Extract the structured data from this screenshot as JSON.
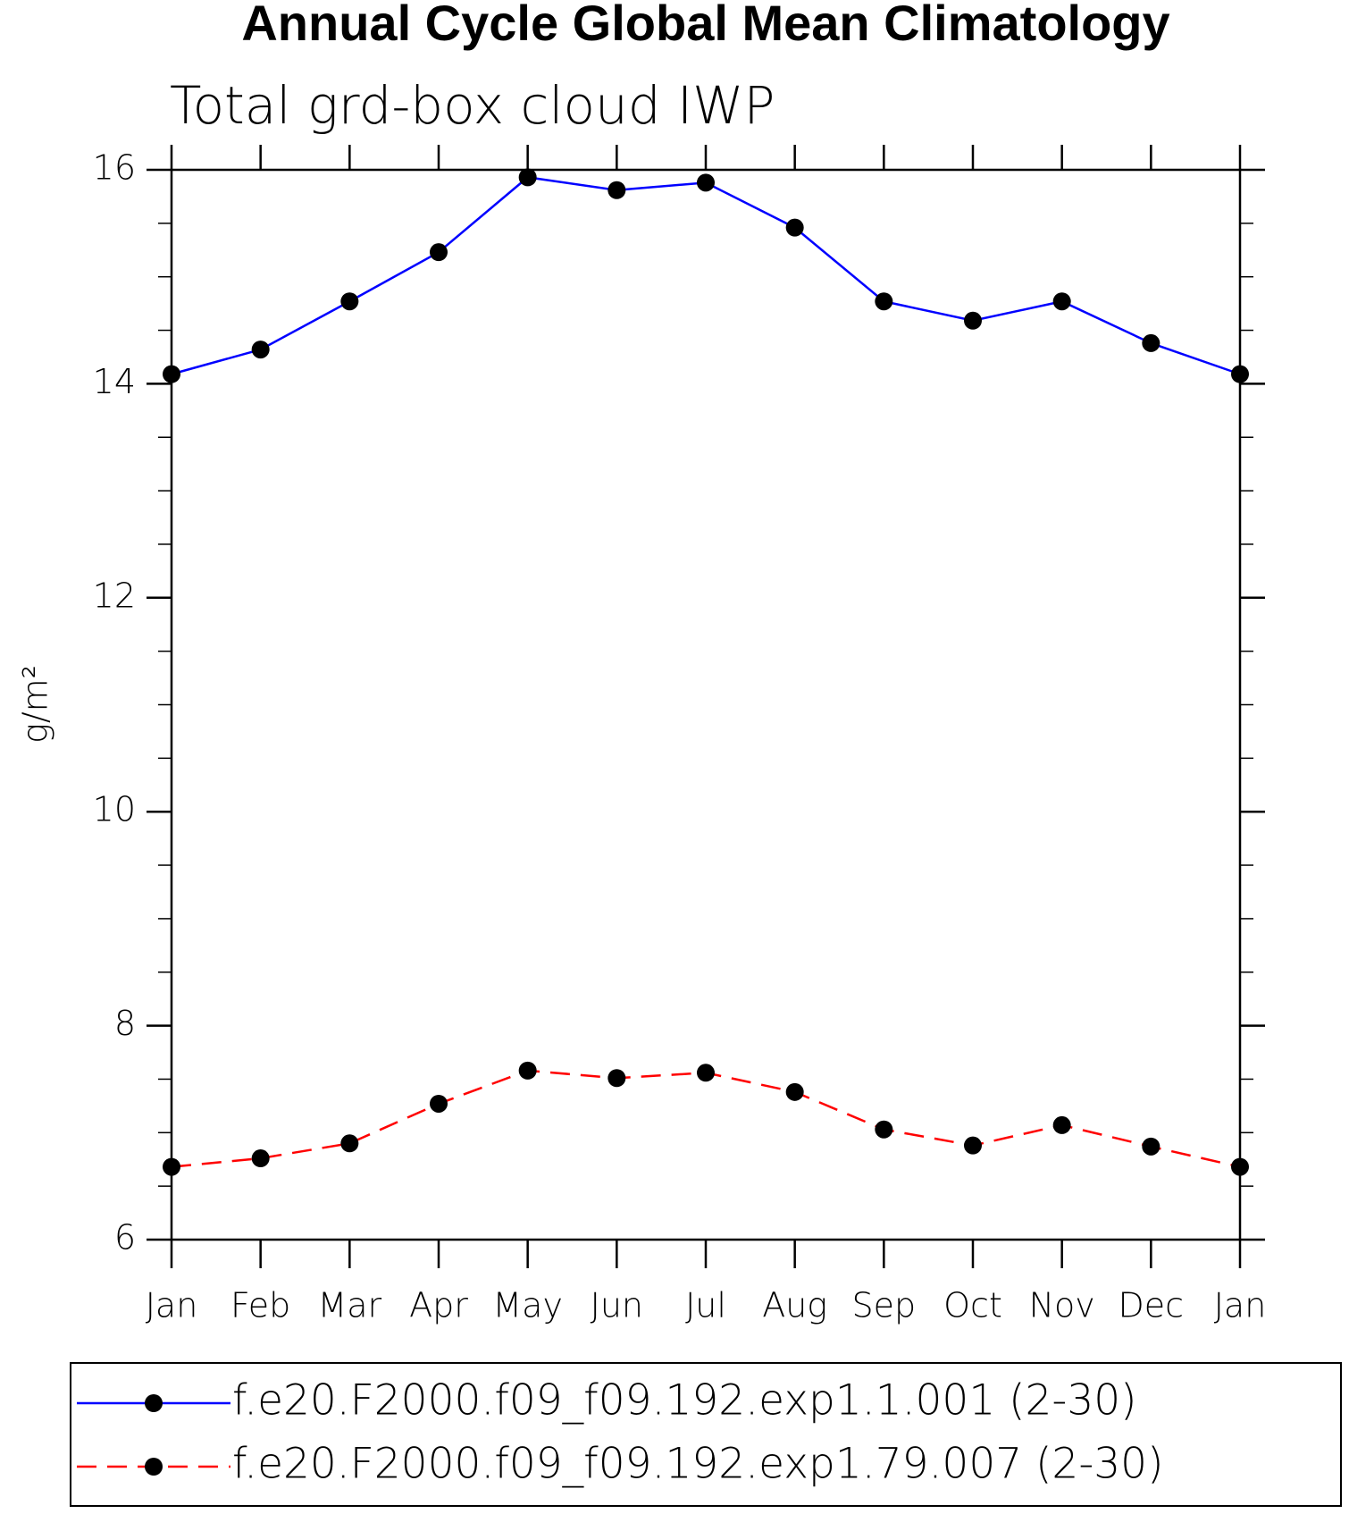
{
  "chart_data": {
    "type": "line",
    "title": "Annual Cycle Global Mean Climatology",
    "subtitle": "Total grd-box cloud IWP",
    "y_label": "g/m²",
    "categories": [
      "Jan",
      "Feb",
      "Mar",
      "Apr",
      "May",
      "Jun",
      "Jul",
      "Aug",
      "Sep",
      "Oct",
      "Nov",
      "Dec",
      "Jan"
    ],
    "series": [
      {
        "name": "f.e20.F2000.f09_f09.192.exp1.1.001 (2-30)",
        "color": "#0000ff",
        "line_style": "solid",
        "values": [
          14.09,
          14.32,
          14.77,
          15.23,
          15.93,
          15.81,
          15.88,
          15.46,
          14.77,
          14.59,
          14.77,
          14.38,
          14.09
        ]
      },
      {
        "name": "f.e20.F2000.f09_f09.192.exp1.79.007 (2-30)",
        "color": "#ff0000",
        "line_style": "dashed",
        "values": [
          6.68,
          6.76,
          6.9,
          7.27,
          7.58,
          7.51,
          7.56,
          7.38,
          7.03,
          6.88,
          7.07,
          6.87,
          6.68
        ]
      }
    ],
    "ylim": [
      6,
      16
    ],
    "yticks": [
      6,
      8,
      10,
      12,
      14,
      16
    ],
    "marker_color": "#000000"
  }
}
